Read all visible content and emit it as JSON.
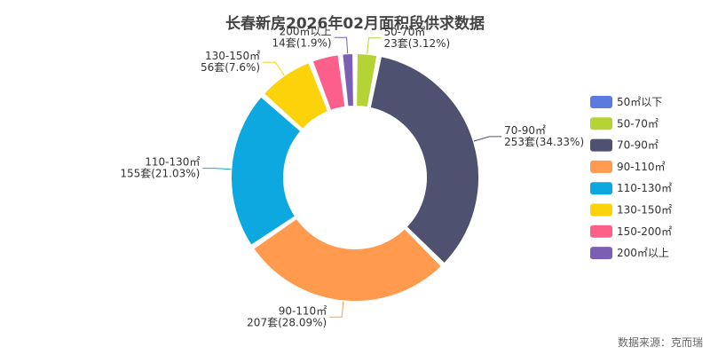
{
  "chart_data": {
    "type": "donut",
    "title": "长春新房2026年02月面积段供求数据",
    "categories": [
      "50㎡以下",
      "50-70㎡",
      "70-90㎡",
      "90-110㎡",
      "110-130㎡",
      "130-150㎡",
      "150-200㎡",
      "200㎡以上"
    ],
    "values": [
      0,
      23,
      253,
      207,
      155,
      56,
      29,
      14
    ],
    "value_labels": [
      null,
      "23套(3.12%)",
      "253套(34.33%)",
      "207套(28.09%)",
      "155套(21.03%)",
      "56套(7.6%)",
      null,
      "14套(1.9%)"
    ],
    "colors": [
      "#5b7be0",
      "#b5d334",
      "#4f5170",
      "#ff9a4f",
      "#0ea8e0",
      "#fcd20a",
      "#fc5f8a",
      "#7b5fb5"
    ],
    "legend_position": "right",
    "source": "数据来源：克而瑞"
  }
}
